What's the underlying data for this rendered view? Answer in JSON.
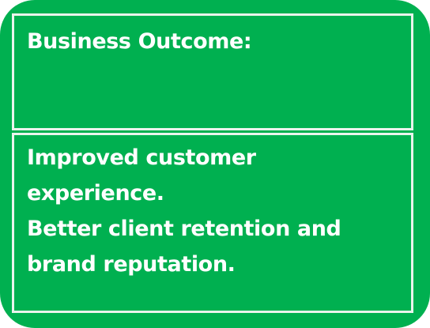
{
  "header": {
    "title": "Business Outcome:"
  },
  "body": {
    "lines": [
      "Improved customer",
      "experience.",
      "Better client retention and",
      "brand reputation."
    ]
  },
  "colors": {
    "background": "#00b050",
    "border": "#eaf4ec",
    "text": "#ffffff"
  }
}
